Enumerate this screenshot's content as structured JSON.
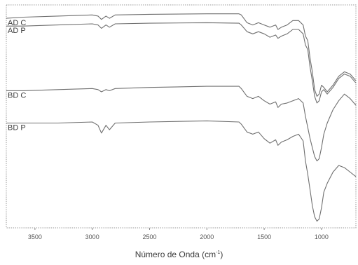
{
  "chart_data": {
    "type": "line",
    "title": "",
    "xlabel": "Número de Onda (cm",
    "xlabel_superscript": "-1",
    "xlabel_suffix": ")",
    "ylabel": "",
    "xlim": [
      3750,
      700
    ],
    "ylim": [
      0,
      100
    ],
    "x_reversed": true,
    "x_ticks": [
      3500,
      3000,
      2500,
      2000,
      1500,
      1000
    ],
    "x_tick_labels": [
      "3500",
      "3000",
      "2500",
      "2000",
      "1500",
      "1000"
    ],
    "grid": false,
    "legend": "inline-left",
    "line_color": "#6f6f6f",
    "series": [
      {
        "name": "AD C",
        "x": [
          3750,
          3600,
          3300,
          3000,
          2950,
          2920,
          2880,
          2850,
          2800,
          2500,
          2000,
          1720,
          1700,
          1650,
          1600,
          1550,
          1500,
          1450,
          1400,
          1380,
          1350,
          1300,
          1250,
          1200,
          1160,
          1140,
          1120,
          1100,
          1080,
          1060,
          1040,
          1020,
          1000,
          980,
          950,
          900,
          850,
          800,
          750,
          700
        ],
        "y": [
          94,
          94.5,
          95,
          95.5,
          95,
          93.5,
          95,
          94,
          95.5,
          95.8,
          96,
          96,
          95.5,
          92,
          91,
          92,
          91,
          90,
          91,
          89,
          90,
          91,
          93,
          93,
          91,
          86,
          84,
          76,
          70,
          62,
          59,
          60,
          64,
          63,
          61,
          64,
          68,
          70,
          69,
          66
        ]
      },
      {
        "name": "AD P",
        "x": [
          3750,
          3600,
          3300,
          3000,
          2950,
          2920,
          2880,
          2850,
          2800,
          2500,
          2000,
          1720,
          1700,
          1650,
          1600,
          1550,
          1500,
          1450,
          1400,
          1380,
          1350,
          1300,
          1250,
          1200,
          1160,
          1140,
          1120,
          1100,
          1080,
          1060,
          1040,
          1020,
          1000,
          980,
          950,
          900,
          850,
          800,
          750,
          700
        ],
        "y": [
          90.5,
          90.5,
          91,
          91.5,
          91,
          89.5,
          91,
          90,
          91.5,
          91.8,
          92,
          91.8,
          91,
          88,
          87,
          88,
          87,
          85.5,
          86.5,
          85,
          86,
          87,
          89,
          89,
          87,
          82,
          80,
          72,
          66,
          59,
          56,
          57,
          61,
          62,
          60,
          63,
          67,
          69,
          68,
          65
        ]
      },
      {
        "name": "BD C",
        "x": [
          3750,
          3600,
          3300,
          3000,
          2950,
          2920,
          2880,
          2850,
          2800,
          2500,
          2000,
          1720,
          1700,
          1650,
          1600,
          1550,
          1500,
          1450,
          1400,
          1380,
          1350,
          1300,
          1250,
          1200,
          1160,
          1140,
          1120,
          1100,
          1080,
          1060,
          1040,
          1020,
          1000,
          980,
          950,
          900,
          850,
          800,
          750,
          700
        ],
        "y": [
          61.5,
          61.5,
          62,
          62.5,
          62,
          61,
          62,
          61.5,
          62.5,
          63,
          63.5,
          63.5,
          62.5,
          59,
          58,
          59,
          57,
          55.5,
          56.5,
          54,
          55.5,
          56,
          57,
          58,
          56,
          50,
          45,
          40,
          36,
          32,
          30,
          31,
          36,
          42,
          47,
          53,
          57,
          60,
          58,
          55
        ]
      },
      {
        "name": "BD P",
        "x": [
          3750,
          3600,
          3300,
          3000,
          2950,
          2920,
          2880,
          2850,
          2800,
          2500,
          2000,
          1720,
          1700,
          1650,
          1600,
          1550,
          1500,
          1450,
          1400,
          1380,
          1350,
          1300,
          1250,
          1200,
          1160,
          1140,
          1120,
          1100,
          1080,
          1060,
          1040,
          1020,
          1000,
          980,
          950,
          900,
          850,
          800,
          750,
          700
        ],
        "y": [
          47,
          47,
          47,
          47.5,
          46,
          42.5,
          46,
          44,
          47,
          47.5,
          48,
          47.5,
          46.5,
          43,
          42,
          43,
          40,
          38,
          39.5,
          37,
          38.5,
          39.5,
          41,
          42,
          39,
          30,
          24,
          17,
          10,
          5,
          3,
          4,
          9,
          16,
          20,
          25,
          28,
          27,
          25,
          23
        ]
      }
    ]
  }
}
